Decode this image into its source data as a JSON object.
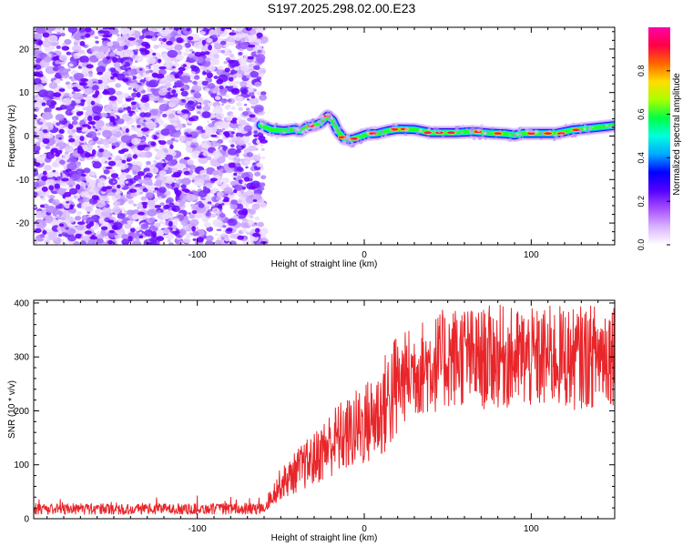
{
  "title": "S197.2025.298.02.00.E23",
  "chart_data": [
    {
      "type": "heatmap",
      "name": "spectrogram",
      "xlabel": "Height of straight line (km)",
      "ylabel": "Frequency (Hz)",
      "xlim": [
        -198,
        150
      ],
      "ylim": [
        -25,
        25
      ],
      "xticks": [
        -100,
        0,
        100
      ],
      "yticks": [
        -20,
        -10,
        0,
        10,
        20
      ],
      "noise_region_x": [
        -198,
        -60
      ],
      "signal_track": [
        [
          -62,
          2.5
        ],
        [
          -56,
          1.5
        ],
        [
          -48,
          1.2
        ],
        [
          -42,
          1.5
        ],
        [
          -38,
          1.2
        ],
        [
          -34,
          2.2
        ],
        [
          -30,
          2.4
        ],
        [
          -26,
          3.0
        ],
        [
          -22,
          4.6
        ],
        [
          -19,
          3.6
        ],
        [
          -16,
          1.2
        ],
        [
          -12,
          -0.6
        ],
        [
          -8,
          -0.8
        ],
        [
          -3,
          -0.2
        ],
        [
          2,
          0.5
        ],
        [
          8,
          0.6
        ],
        [
          14,
          1.2
        ],
        [
          20,
          1.6
        ],
        [
          30,
          1.5
        ],
        [
          40,
          0.8
        ],
        [
          55,
          0.8
        ],
        [
          65,
          1.0
        ],
        [
          75,
          0.7
        ],
        [
          85,
          0.5
        ],
        [
          90,
          0.2
        ],
        [
          95,
          0.6
        ],
        [
          105,
          0.6
        ],
        [
          115,
          0.6
        ],
        [
          125,
          1.4
        ],
        [
          135,
          1.8
        ],
        [
          150,
          2.4
        ]
      ],
      "colorbar": {
        "label": "Normalized spectral amplitude",
        "range": [
          0,
          1
        ],
        "ticks": [
          "0.0",
          "0.2",
          "0.4",
          "0.6",
          "0.8"
        ],
        "colors": [
          "#ffffff",
          "#d9b3ff",
          "#a64dff",
          "#5500ff",
          "#0000ff",
          "#00aaff",
          "#00ffdd",
          "#00ff44",
          "#aaff00",
          "#ffdd00",
          "#ff6600",
          "#ff0044",
          "#ff00aa"
        ]
      }
    },
    {
      "type": "line",
      "name": "snr",
      "xlabel": "Height of straight line (km)",
      "ylabel": "SNR (10 * v/v)",
      "xlim": [
        -198,
        150
      ],
      "ylim": [
        0,
        405
      ],
      "xticks": [
        -100,
        0,
        100
      ],
      "yticks": [
        0,
        100,
        200,
        300,
        400
      ],
      "color": "#e8262a",
      "series": [
        {
          "name": "SNR envelope",
          "x": [
            -198,
            -150,
            -100,
            -70,
            -60,
            -55,
            -50,
            -45,
            -40,
            -35,
            -30,
            -25,
            -20,
            -15,
            -10,
            -5,
            0,
            5,
            10,
            15,
            20,
            25,
            30,
            35,
            40,
            45,
            50,
            55,
            60,
            65,
            70,
            75,
            80,
            85,
            90,
            95,
            100,
            105,
            110,
            115,
            120,
            125,
            130,
            135,
            140,
            145,
            150
          ],
          "values": [
            18,
            18,
            18,
            19,
            20,
            45,
            65,
            75,
            90,
            100,
            110,
            125,
            140,
            150,
            155,
            165,
            175,
            185,
            200,
            225,
            245,
            265,
            275,
            280,
            285,
            290,
            300,
            300,
            305,
            295,
            295,
            300,
            300,
            300,
            295,
            300,
            295,
            295,
            300,
            300,
            300,
            295,
            300,
            300,
            305,
            310,
            310
          ]
        }
      ]
    }
  ]
}
